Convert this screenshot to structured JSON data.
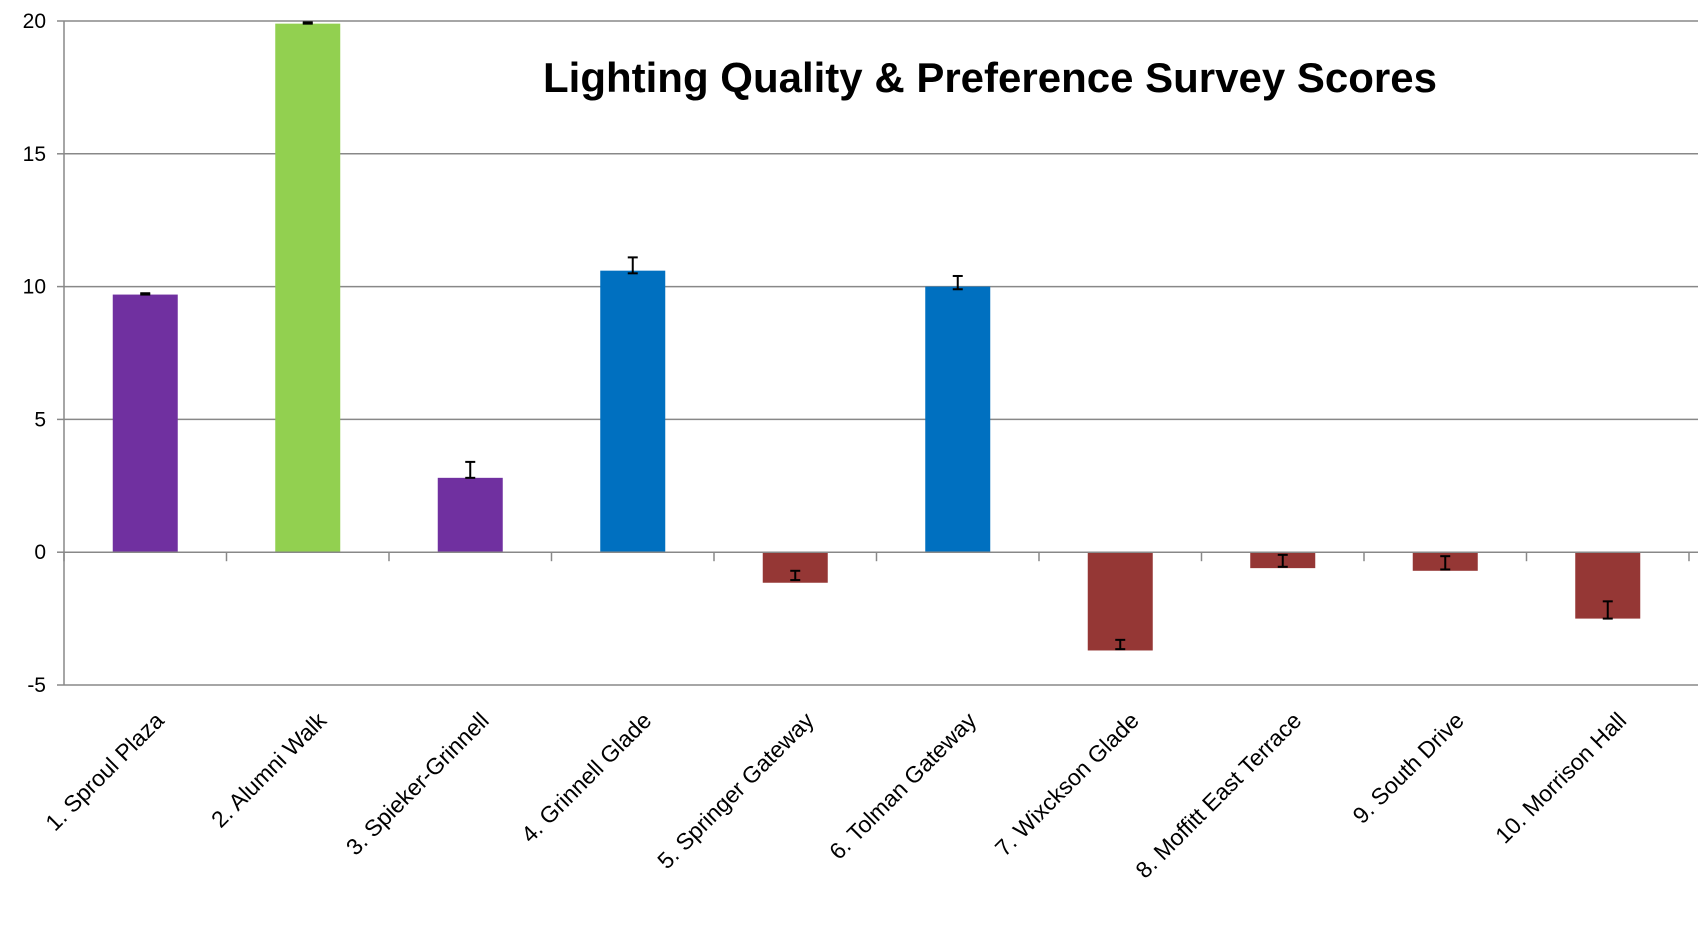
{
  "chart_data": {
    "type": "bar",
    "title": "Lighting Quality & Preference Survey Scores",
    "xlabel": "",
    "ylabel": "",
    "ylim": [
      -5,
      20
    ],
    "yticks": [
      -5,
      0,
      5,
      10,
      15,
      20
    ],
    "grid": true,
    "legend": "none",
    "categories": [
      "1. Sproul Plaza",
      "2. Alumni Walk",
      "3. Spieker-Grinnell",
      "4. Grinnell Glade",
      "5. Springer Gateway",
      "6. Tolman Gateway",
      "7. Wixckson Glade",
      "8. Moffitt East Terrace",
      "9. South Drive",
      "10. Morrison Hall"
    ],
    "values": [
      9.7,
      19.9,
      2.8,
      10.6,
      -1.15,
      10.0,
      -3.7,
      -0.6,
      -0.7,
      -2.5
    ],
    "error_low": [
      9.7,
      19.9,
      2.8,
      10.5,
      -1.05,
      9.9,
      -3.55,
      -0.55,
      -0.65,
      -2.5
    ],
    "error_high": [
      9.75,
      19.95,
      3.4,
      11.1,
      -0.7,
      10.4,
      -3.3,
      -0.1,
      -0.15,
      -1.85
    ],
    "error_bottom": [
      9.7,
      19.9,
      2.8,
      10.5,
      -1.05,
      9.9,
      -3.65,
      -0.55,
      -0.65,
      -2.5
    ],
    "bar_colors": [
      "#7030A0",
      "#92D050",
      "#7030A0",
      "#0070C0",
      "#953735",
      "#0070C0",
      "#953735",
      "#953735",
      "#953735",
      "#953735"
    ]
  }
}
